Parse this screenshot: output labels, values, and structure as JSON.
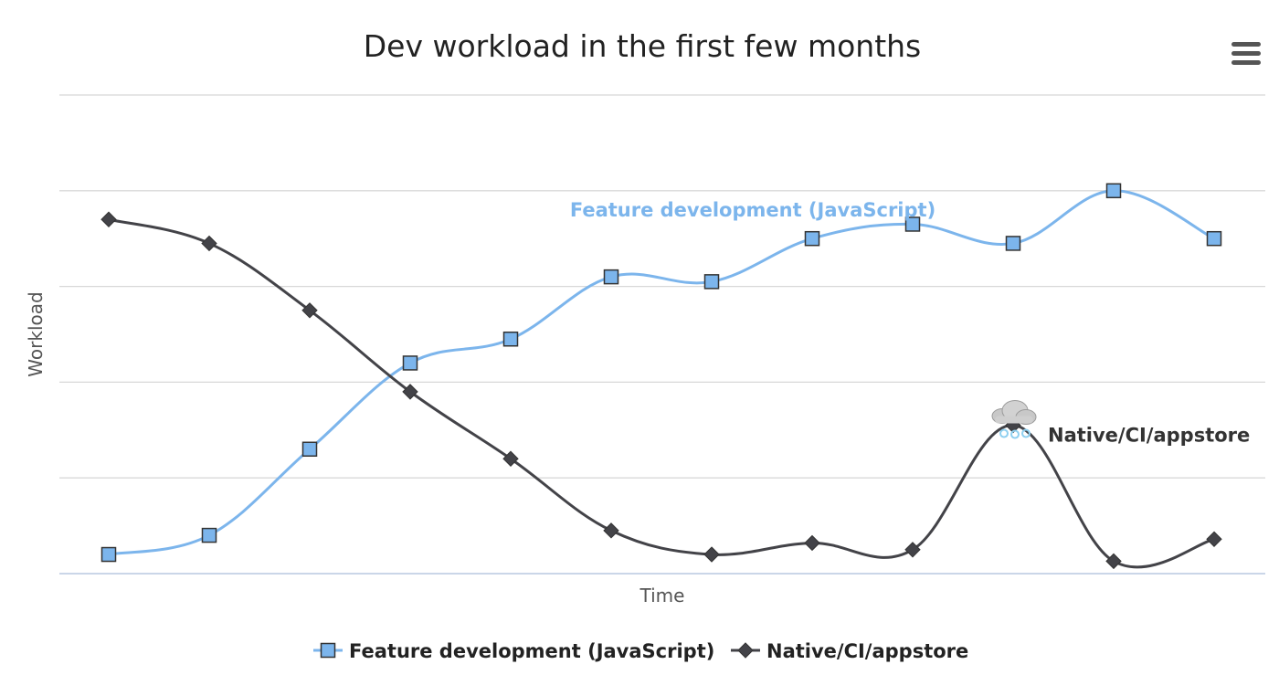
{
  "chart_data": {
    "type": "line",
    "title": "Dev workload in the first few months",
    "xlabel": "Time",
    "ylabel": "Workload",
    "ylim": [
      0,
      5
    ],
    "x": [
      1,
      2,
      3,
      4,
      5,
      6,
      7,
      8,
      9,
      10,
      11,
      12
    ],
    "grid": true,
    "legend_position": "bottom-center",
    "series": [
      {
        "name": "Feature development (JavaScript)",
        "color": "#7cb5ec",
        "marker": "square",
        "values": [
          0.2,
          0.4,
          1.3,
          2.2,
          2.45,
          3.1,
          3.05,
          3.5,
          3.65,
          3.45,
          4.0,
          3.5
        ],
        "label": "Feature development (JavaScript)"
      },
      {
        "name": "Native/CI/appstore",
        "color": "#434348",
        "marker": "diamond",
        "values": [
          3.7,
          3.45,
          2.75,
          1.9,
          1.2,
          0.45,
          0.2,
          0.32,
          0.25,
          1.55,
          0.13,
          0.36
        ],
        "label": "Native/CI/appstore",
        "annotation_icon": "snow-cloud-icon"
      }
    ]
  },
  "toolbar": {
    "menu_icon": "hamburger-menu-icon"
  }
}
